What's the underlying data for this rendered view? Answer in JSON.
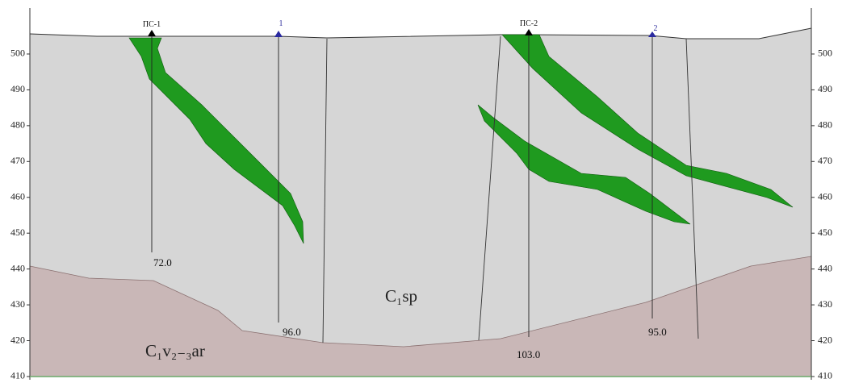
{
  "section": {
    "axis": {
      "ylim": [
        409,
        513
      ],
      "yticks": [
        410,
        420,
        430,
        440,
        450,
        460,
        470,
        480,
        490,
        500
      ]
    },
    "wells": [
      {
        "label": "ПС-1",
        "depth": "72.0"
      },
      {
        "label": "1",
        "depth": "96.0"
      },
      {
        "label": "ПС-2",
        "depth": "103.0"
      },
      {
        "label": "2",
        "depth": "95.0"
      }
    ],
    "units": [
      "C₁sp",
      "C₁v₂₋₃ar"
    ]
  }
}
